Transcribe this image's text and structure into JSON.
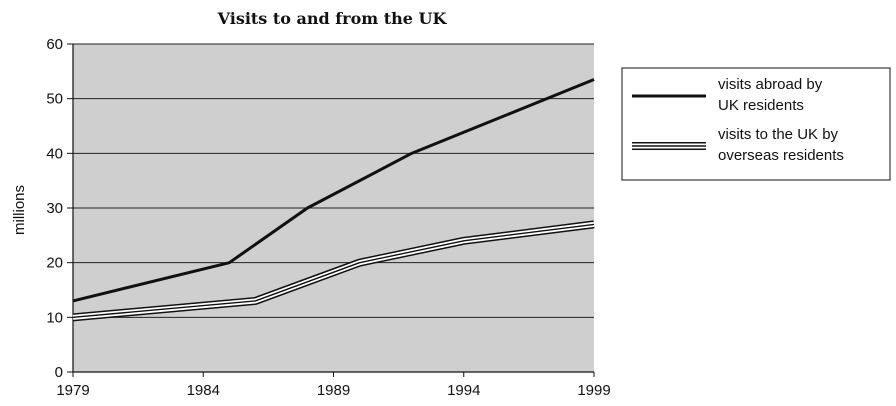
{
  "chart_data": {
    "type": "line",
    "title": "Visits to and from the UK",
    "xlabel": "",
    "ylabel": "millions",
    "xlim": [
      1979,
      1999
    ],
    "ylim": [
      0,
      60
    ],
    "x_ticks": [
      "1979",
      "1984",
      "1989",
      "1994",
      "1999"
    ],
    "y_ticks": [
      "0",
      "10",
      "20",
      "30",
      "40",
      "50",
      "60"
    ],
    "grid": "horizontal",
    "legend_position": "right",
    "series": [
      {
        "name": "visits abroad by UK residents",
        "style": "thick-black",
        "color": "#111111",
        "points": [
          {
            "x": 1979,
            "y": 13
          },
          {
            "x": 1985,
            "y": 20
          },
          {
            "x": 1988,
            "y": 30
          },
          {
            "x": 1992,
            "y": 40
          },
          {
            "x": 1999,
            "y": 53.5
          }
        ]
      },
      {
        "name": "visits to the UK by overseas residents",
        "style": "triple-line",
        "color": "#111111",
        "points": [
          {
            "x": 1979,
            "y": 10
          },
          {
            "x": 1986,
            "y": 13
          },
          {
            "x": 1990,
            "y": 20
          },
          {
            "x": 1994,
            "y": 24
          },
          {
            "x": 1999,
            "y": 27
          }
        ]
      }
    ],
    "legend": {
      "entries": [
        {
          "lines": [
            "visits abroad by",
            "UK residents"
          ]
        },
        {
          "lines": [
            "visits to the UK by",
            "overseas residents"
          ]
        }
      ]
    },
    "colors": {
      "plot_background": "#cfcfcf",
      "gridline": "#222222"
    }
  }
}
